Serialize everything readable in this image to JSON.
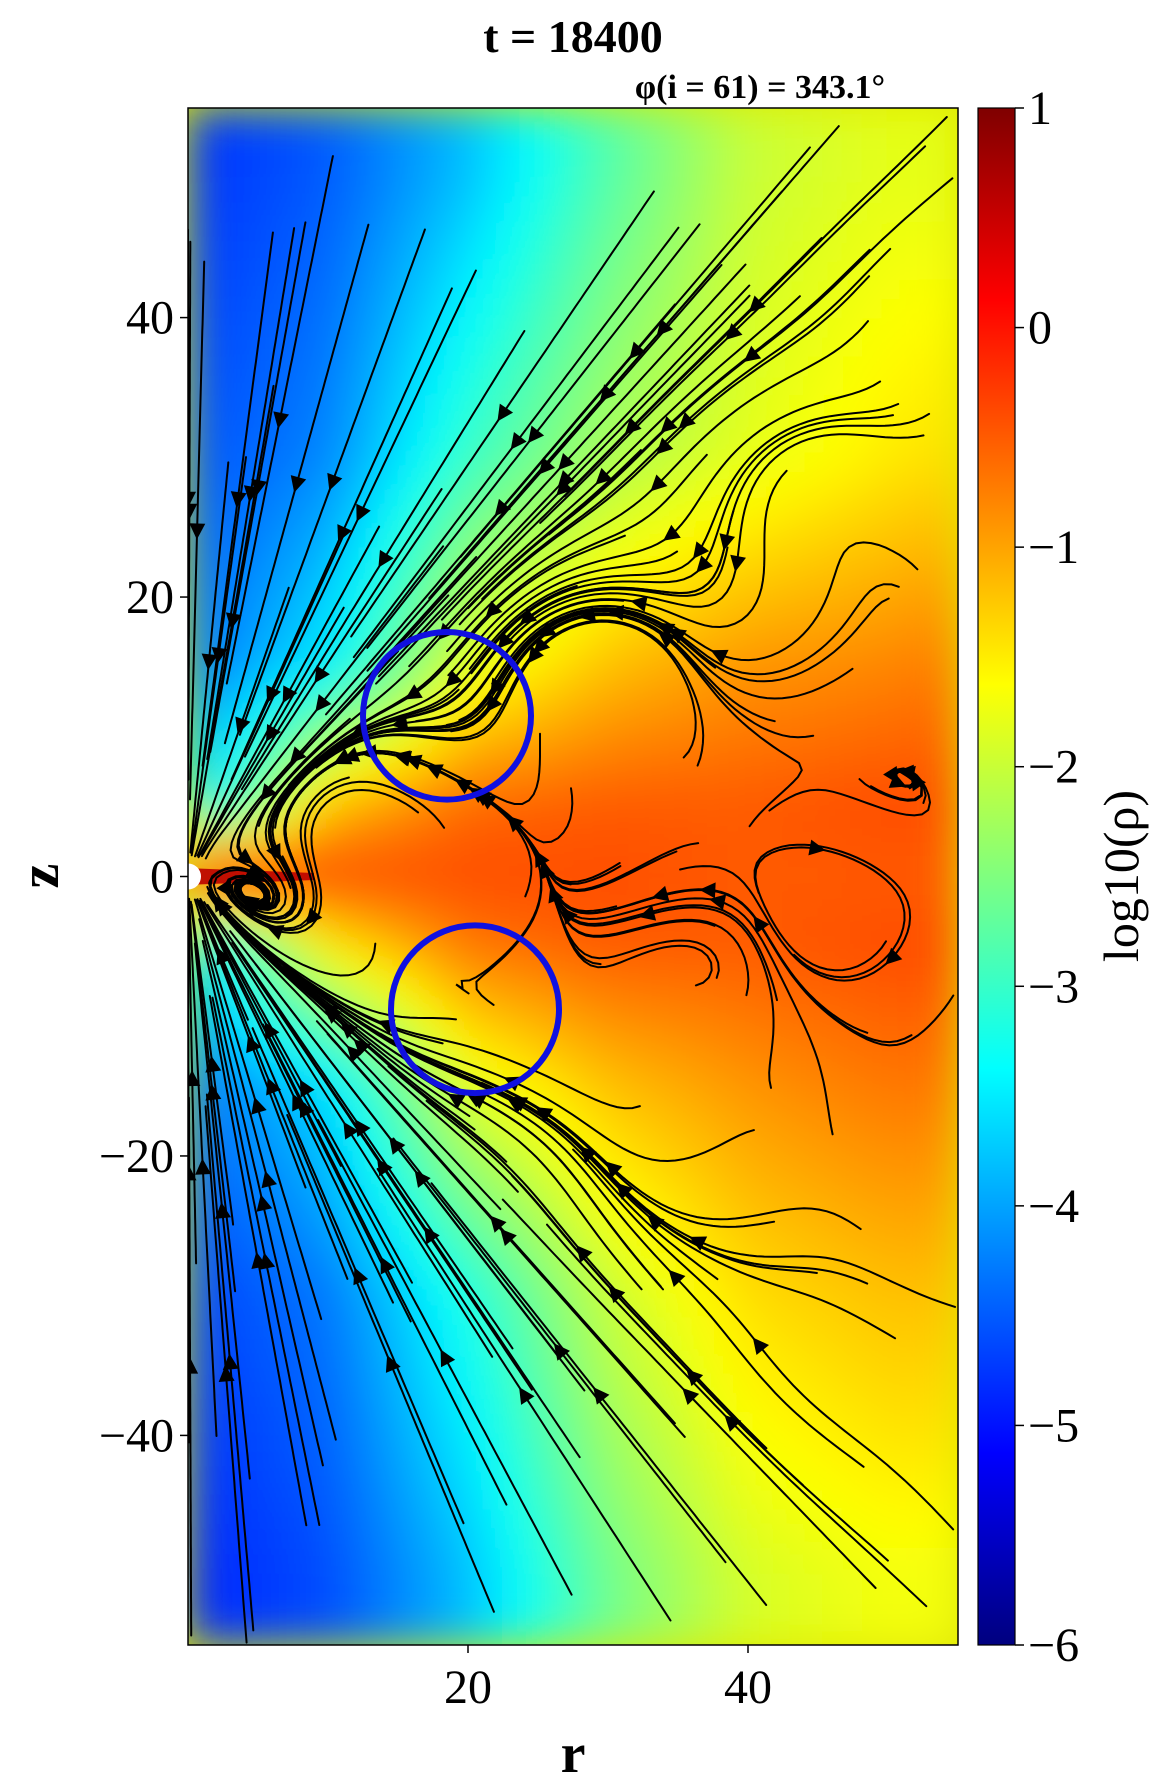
{
  "chart_data": {
    "type": "heatmap",
    "title": "t = 18400",
    "subtitle": "φ(i = 61) = 343.1°",
    "xlabel": "r",
    "ylabel": "z",
    "colorbar_label": "log10(ρ)",
    "xlim": [
      0,
      55
    ],
    "ylim": [
      -55,
      55
    ],
    "clim": [
      -6,
      1
    ],
    "x_ticks": [
      20,
      40
    ],
    "x_tick_labels": [
      "20",
      "40"
    ],
    "y_ticks": [
      40,
      20,
      0,
      -20,
      -40
    ],
    "y_tick_labels": [
      "40",
      "20",
      "0",
      "−20",
      "−40"
    ],
    "colorbar_ticks": [
      1,
      0,
      -1,
      -2,
      -3,
      -4,
      -5,
      -6
    ],
    "colorbar_tick_labels": [
      "1",
      "0",
      "−1",
      "−2",
      "−3",
      "−4",
      "−5",
      "−6"
    ],
    "colormap": "jet",
    "colormap_stops": [
      "#00007f",
      "#0000ff",
      "#007fff",
      "#00ffff",
      "#7fff7f",
      "#ffff00",
      "#ff7f00",
      "#ff0000",
      "#7f0000"
    ],
    "density_field_samples": {
      "r": [
        0,
        10,
        20,
        30,
        40,
        50,
        55
      ],
      "z": [
        50,
        30,
        15,
        5,
        0,
        -5,
        -15,
        -30,
        -50
      ],
      "log10_rho": [
        [
          -4.8,
          -4.5,
          -3.8,
          -2.8,
          -2.0,
          -1.8,
          -1.8
        ],
        [
          -4.6,
          -4.2,
          -3.0,
          -2.2,
          -1.8,
          -1.5,
          -1.4
        ],
        [
          -4.4,
          -3.5,
          -1.8,
          -1.2,
          -0.9,
          -0.8,
          -0.7
        ],
        [
          -3.8,
          -1.2,
          -0.6,
          -0.5,
          -0.5,
          -0.4,
          -0.4
        ],
        [
          0.2,
          -0.4,
          -0.4,
          -0.4,
          -0.5,
          -0.5,
          -0.5
        ],
        [
          -3.8,
          -1.5,
          -0.7,
          -0.5,
          -0.5,
          -0.4,
          -0.4
        ],
        [
          -4.4,
          -3.6,
          -1.8,
          -1.2,
          -0.9,
          -0.7,
          -0.7
        ],
        [
          -4.7,
          -4.3,
          -3.2,
          -2.0,
          -1.4,
          -1.2,
          -1.2
        ],
        [
          -4.9,
          -4.6,
          -3.8,
          -2.6,
          -1.9,
          -1.7,
          -1.7
        ]
      ]
    },
    "streamlines": true,
    "annotations": [
      {
        "shape": "circle",
        "color": "#1010e0",
        "center": [
          18.5,
          11.5
        ],
        "radius": 6
      },
      {
        "shape": "circle",
        "color": "#1010e0",
        "center": [
          20.5,
          -9.5
        ],
        "radius": 6
      }
    ]
  }
}
